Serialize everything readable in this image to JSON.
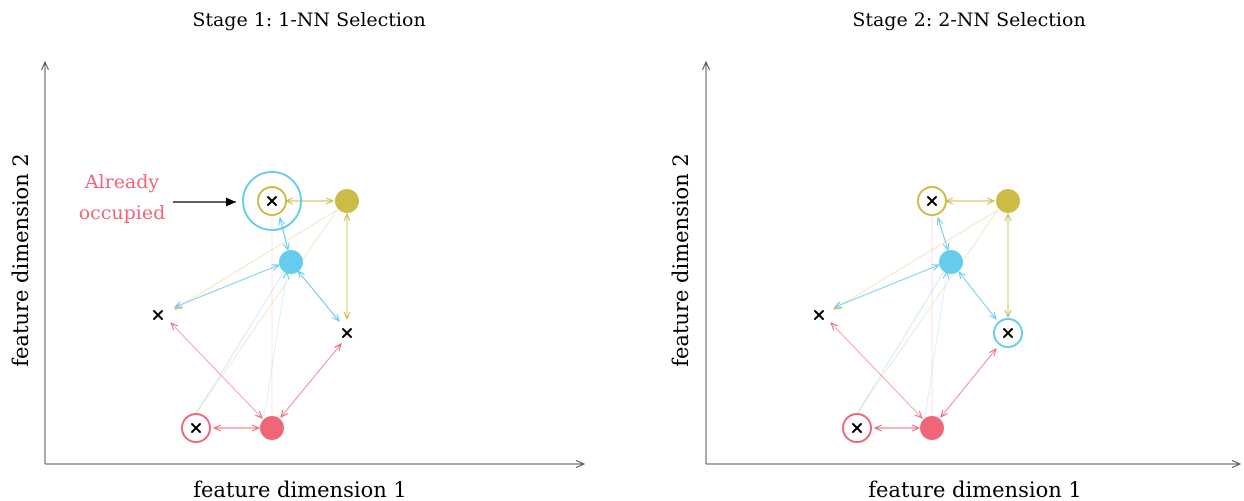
{
  "colors": {
    "pink": "#ee6677",
    "cyan": "#66ccee",
    "olive": "#ccbb44",
    "axis": "#555555",
    "annotation": "#ee6677"
  },
  "panels": [
    {
      "title": "Stage 1: 1-NN Selection",
      "xlabel": "feature dimension 1",
      "ylabel": "feature dimension 2",
      "annotation": {
        "line1": "Already",
        "line2": "occupied"
      }
    },
    {
      "title": "Stage 2: 2-NN Selection",
      "xlabel": "feature dimension 1",
      "ylabel": "feature dimension 2"
    }
  ]
}
